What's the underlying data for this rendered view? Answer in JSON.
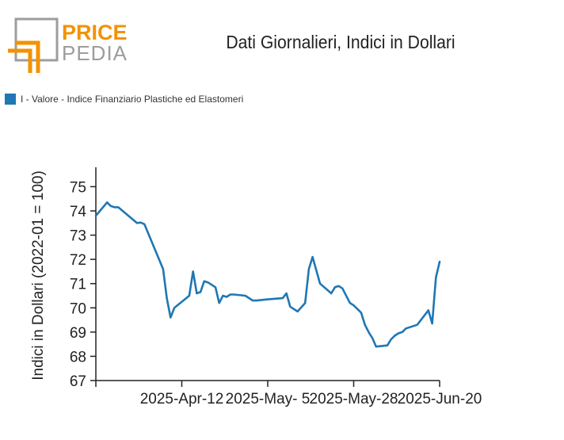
{
  "logo": {
    "line1": "PRICE",
    "line2": "PEDIA",
    "colors": {
      "orange": "#f39200",
      "gray": "#9d9d9c"
    }
  },
  "chart_data": {
    "type": "line",
    "title": "Dati Giornalieri, Indici in Dollari",
    "ylabel": "Indici in Dollari (2022-01 = 100)",
    "xlabel": "",
    "ylim": [
      67,
      75.8
    ],
    "yticks": [
      67,
      68,
      69,
      70,
      71,
      72,
      73,
      74,
      75
    ],
    "xlim": [
      "2025-03-20",
      "2025-06-20"
    ],
    "xticks": [
      "2025-03-20",
      "2025-04-12",
      "2025-05-05",
      "2025-05-28",
      "2025-06-20"
    ],
    "xtick_labels": [
      "",
      "2025-Apr-12",
      "2025-May- 5",
      "2025-May-28",
      "2025-Jun-20"
    ],
    "legend_position": "top-left",
    "grid": false,
    "series": [
      {
        "name": "I - Valore - Indice Finanziario Plastiche ed Elastomeri",
        "color": "#1f77b4",
        "x": [
          "2025-03-20",
          "2025-03-23",
          "2025-03-24",
          "2025-03-25",
          "2025-03-26",
          "2025-03-31",
          "2025-04-01",
          "2025-04-02",
          "2025-04-07",
          "2025-04-08",
          "2025-04-09",
          "2025-04-10",
          "2025-04-14",
          "2025-04-15",
          "2025-04-16",
          "2025-04-17",
          "2025-04-18",
          "2025-04-19",
          "2025-04-21",
          "2025-04-22",
          "2025-04-23",
          "2025-04-24",
          "2025-04-25",
          "2025-04-26",
          "2025-04-29",
          "2025-05-01",
          "2025-05-02",
          "2025-05-05",
          "2025-05-09",
          "2025-05-10",
          "2025-05-11",
          "2025-05-13",
          "2025-05-15",
          "2025-05-16",
          "2025-05-17",
          "2025-05-19",
          "2025-05-22",
          "2025-05-23",
          "2025-05-24",
          "2025-05-25",
          "2025-05-27",
          "2025-05-28",
          "2025-05-30",
          "2025-05-31",
          "2025-06-01",
          "2025-06-02",
          "2025-06-03",
          "2025-06-06",
          "2025-06-07",
          "2025-06-08",
          "2025-06-09",
          "2025-06-10",
          "2025-06-11",
          "2025-06-14",
          "2025-06-17",
          "2025-06-18",
          "2025-06-19",
          "2025-06-20"
        ],
        "values": [
          73.8,
          74.35,
          74.2,
          74.15,
          74.15,
          73.5,
          73.52,
          73.45,
          71.6,
          70.4,
          69.6,
          70.0,
          70.5,
          71.5,
          70.6,
          70.65,
          71.1,
          71.05,
          70.85,
          70.2,
          70.5,
          70.45,
          70.55,
          70.55,
          70.5,
          70.3,
          70.3,
          70.35,
          70.4,
          70.6,
          70.05,
          69.85,
          70.2,
          71.6,
          72.1,
          71.0,
          70.6,
          70.85,
          70.9,
          70.8,
          70.2,
          70.1,
          69.8,
          69.3,
          69.0,
          68.75,
          68.4,
          68.45,
          68.7,
          68.85,
          68.95,
          69.0,
          69.15,
          69.3,
          69.9,
          69.35,
          71.25,
          71.9
        ]
      }
    ]
  }
}
